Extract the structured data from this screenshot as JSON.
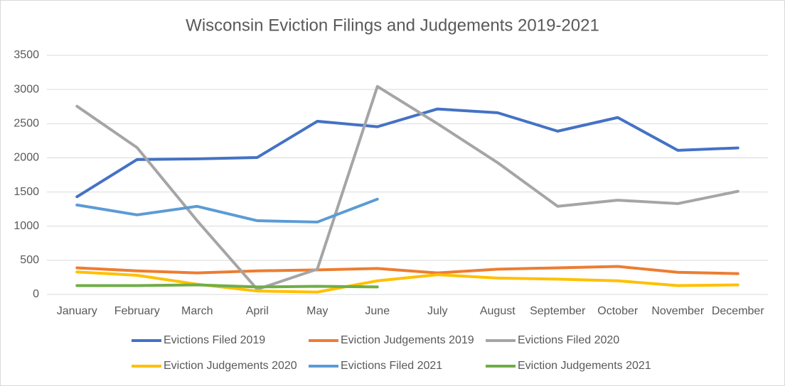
{
  "chart_data": {
    "type": "line",
    "title": "Wisconsin Eviction Filings and Judgements 2019-2021",
    "categories": [
      "January",
      "February",
      "March",
      "April",
      "May",
      "June",
      "July",
      "August",
      "September",
      "October",
      "November",
      "December"
    ],
    "series": [
      {
        "name": "Evictions Filed 2019",
        "color": "#4472c4",
        "values": [
          1430,
          1975,
          1985,
          2005,
          2535,
          2455,
          2715,
          2660,
          2390,
          2590,
          2110,
          2145
        ]
      },
      {
        "name": "Eviction Judgements 2019",
        "color": "#ed7d31",
        "values": [
          390,
          345,
          315,
          345,
          360,
          380,
          315,
          370,
          390,
          410,
          325,
          305
        ]
      },
      {
        "name": "Evictions Filed 2020",
        "color": "#a5a5a5",
        "values": [
          2755,
          2150,
          1080,
          75,
          370,
          3045,
          2500,
          1930,
          1290,
          1380,
          1330,
          1510
        ]
      },
      {
        "name": "Eviction Judgements 2020",
        "color": "#ffc000",
        "values": [
          330,
          280,
          150,
          50,
          35,
          200,
          290,
          240,
          225,
          200,
          130,
          140
        ]
      },
      {
        "name": "Evictions Filed 2021",
        "color": "#5b9bd5",
        "values": [
          1310,
          1165,
          1290,
          1080,
          1060,
          1395,
          null,
          null,
          null,
          null,
          null,
          null
        ]
      },
      {
        "name": "Eviction Judgements 2021",
        "color": "#70ad47",
        "values": [
          130,
          130,
          140,
          110,
          120,
          110,
          null,
          null,
          null,
          null,
          null,
          null
        ]
      }
    ],
    "ylim": [
      0,
      3500
    ],
    "yticks": [
      0,
      500,
      1000,
      1500,
      2000,
      2500,
      3000,
      3500
    ],
    "grid": true
  }
}
